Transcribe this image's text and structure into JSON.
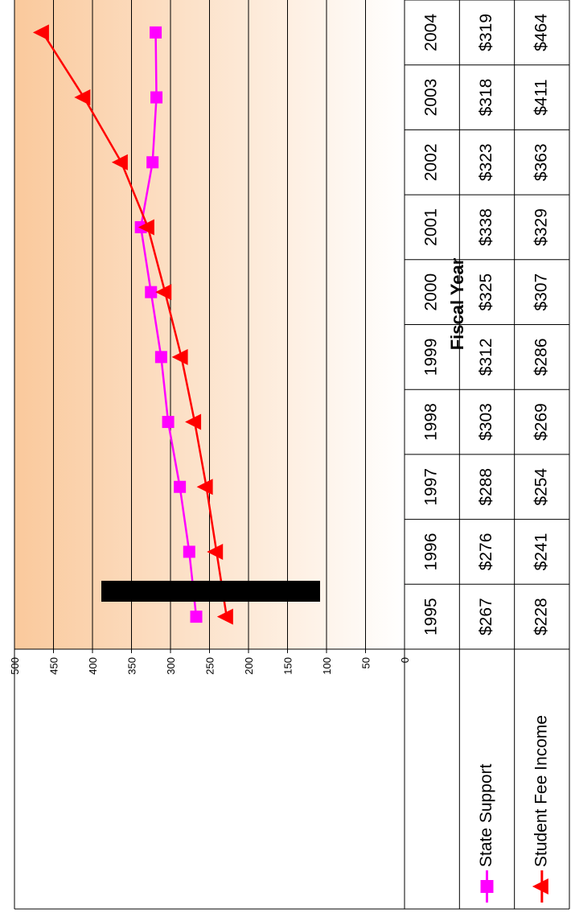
{
  "chart_data": {
    "type": "line",
    "orientation": "rotated-90-clockwise",
    "xlabel": "Fiscal Year",
    "ylabel": "",
    "ylim": [
      0,
      500
    ],
    "yticks": [
      "0",
      "50",
      "100",
      "150",
      "200",
      "250",
      "300",
      "350",
      "400",
      "450",
      "500"
    ],
    "categories": [
      "1995",
      "1996",
      "1997",
      "1998",
      "1999",
      "2000",
      "2001",
      "2002",
      "2003",
      "2004"
    ],
    "grid": true,
    "legend_placement": "data-table",
    "series": [
      {
        "name": "State Support",
        "values": [
          267,
          276,
          288,
          303,
          312,
          325,
          338,
          323,
          318,
          319
        ],
        "labels": [
          "$267",
          "$276",
          "$288",
          "$303",
          "$312",
          "$325",
          "$338",
          "$323",
          "$318",
          "$319"
        ],
        "color": "#ff00ff",
        "marker": "square"
      },
      {
        "name": "Student Fee Income",
        "values": [
          228,
          241,
          254,
          269,
          286,
          307,
          329,
          363,
          411,
          464
        ],
        "labels": [
          "$228",
          "$241",
          "$254",
          "$269",
          "$286",
          "$307",
          "$329",
          "$363",
          "$411",
          "$464"
        ],
        "color": "#ff0000",
        "marker": "triangle"
      }
    ],
    "background_gradient": [
      "#ffffff",
      "#fac99c"
    ],
    "redaction_color": "#000000"
  }
}
